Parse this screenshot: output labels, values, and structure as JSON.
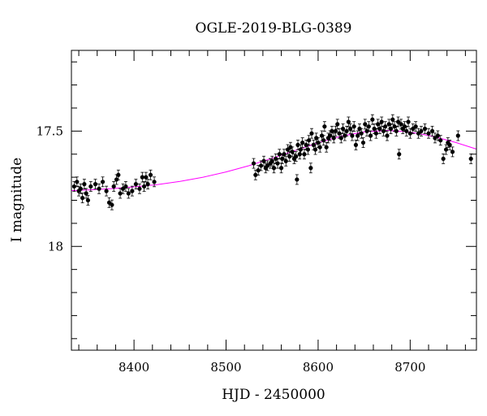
{
  "chart_data": {
    "type": "scatter",
    "title": "OGLE-2019-BLG-0389",
    "xlabel": "HJD - 2450000",
    "ylabel": "I magnitude",
    "xlim": [
      8332,
      8772
    ],
    "ylim": [
      18.45,
      17.15
    ],
    "y_inverted": true,
    "x_ticks": [
      8400,
      8500,
      8600,
      8700
    ],
    "y_ticks": [
      17.5,
      18
    ],
    "x_tick_labels": [
      "8400",
      "8500",
      "8600",
      "8700"
    ],
    "y_tick_labels": [
      "17.5",
      "18"
    ],
    "grid": false,
    "colors": {
      "points": "#000000",
      "model": "#ff00ff"
    },
    "series": [
      {
        "name": "",
        "role": "observations",
        "points": [
          [
            8335,
            17.74
          ],
          [
            8338,
            17.72
          ],
          [
            8340,
            17.76
          ],
          [
            8342,
            17.75
          ],
          [
            8344,
            17.79
          ],
          [
            8346,
            17.73
          ],
          [
            8348,
            17.77
          ],
          [
            8350,
            17.8
          ],
          [
            8353,
            17.74
          ],
          [
            8358,
            17.73
          ],
          [
            8362,
            17.75
          ],
          [
            8366,
            17.72
          ],
          [
            8370,
            17.76
          ],
          [
            8373,
            17.81
          ],
          [
            8376,
            17.82
          ],
          [
            8378,
            17.74
          ],
          [
            8381,
            17.71
          ],
          [
            8383,
            17.69
          ],
          [
            8385,
            17.77
          ],
          [
            8388,
            17.75
          ],
          [
            8391,
            17.74
          ],
          [
            8394,
            17.77
          ],
          [
            8398,
            17.76
          ],
          [
            8402,
            17.73
          ],
          [
            8406,
            17.75
          ],
          [
            8409,
            17.7
          ],
          [
            8411,
            17.74
          ],
          [
            8413,
            17.7
          ],
          [
            8415,
            17.73
          ],
          [
            8418,
            17.69
          ],
          [
            8422,
            17.72
          ],
          [
            8530,
            17.64
          ],
          [
            8532,
            17.69
          ],
          [
            8535,
            17.67
          ],
          [
            8538,
            17.65
          ],
          [
            8541,
            17.63
          ],
          [
            8543,
            17.66
          ],
          [
            8545,
            17.65
          ],
          [
            8548,
            17.64
          ],
          [
            8550,
            17.63
          ],
          [
            8552,
            17.66
          ],
          [
            8554,
            17.62
          ],
          [
            8556,
            17.64
          ],
          [
            8558,
            17.6
          ],
          [
            8560,
            17.66
          ],
          [
            8561,
            17.62
          ],
          [
            8563,
            17.6
          ],
          [
            8565,
            17.63
          ],
          [
            8567,
            17.58
          ],
          [
            8569,
            17.61
          ],
          [
            8570,
            17.57
          ],
          [
            8572,
            17.59
          ],
          [
            8574,
            17.62
          ],
          [
            8576,
            17.61
          ],
          [
            8577,
            17.71
          ],
          [
            8578,
            17.56
          ],
          [
            8580,
            17.6
          ],
          [
            8581,
            17.58
          ],
          [
            8583,
            17.55
          ],
          [
            8585,
            17.6
          ],
          [
            8587,
            17.56
          ],
          [
            8589,
            17.58
          ],
          [
            8590,
            17.54
          ],
          [
            8592,
            17.66
          ],
          [
            8593,
            17.51
          ],
          [
            8595,
            17.56
          ],
          [
            8597,
            17.58
          ],
          [
            8598,
            17.53
          ],
          [
            8600,
            17.55
          ],
          [
            8602,
            17.57
          ],
          [
            8604,
            17.52
          ],
          [
            8606,
            17.54
          ],
          [
            8607,
            17.48
          ],
          [
            8609,
            17.57
          ],
          [
            8611,
            17.53
          ],
          [
            8613,
            17.52
          ],
          [
            8615,
            17.5
          ],
          [
            8617,
            17.53
          ],
          [
            8619,
            17.5
          ],
          [
            8621,
            17.47
          ],
          [
            8623,
            17.51
          ],
          [
            8625,
            17.53
          ],
          [
            8627,
            17.49
          ],
          [
            8629,
            17.52
          ],
          [
            8631,
            17.5
          ],
          [
            8633,
            17.46
          ],
          [
            8635,
            17.49
          ],
          [
            8637,
            17.52
          ],
          [
            8639,
            17.48
          ],
          [
            8641,
            17.56
          ],
          [
            8643,
            17.52
          ],
          [
            8645,
            17.49
          ],
          [
            8647,
            17.51
          ],
          [
            8649,
            17.55
          ],
          [
            8651,
            17.47
          ],
          [
            8653,
            17.5
          ],
          [
            8655,
            17.48
          ],
          [
            8657,
            17.52
          ],
          [
            8659,
            17.45
          ],
          [
            8661,
            17.49
          ],
          [
            8663,
            17.51
          ],
          [
            8665,
            17.47
          ],
          [
            8667,
            17.49
          ],
          [
            8669,
            17.46
          ],
          [
            8671,
            17.5
          ],
          [
            8673,
            17.48
          ],
          [
            8675,
            17.52
          ],
          [
            8677,
            17.47
          ],
          [
            8679,
            17.49
          ],
          [
            8681,
            17.45
          ],
          [
            8683,
            17.48
          ],
          [
            8685,
            17.5
          ],
          [
            8687,
            17.46
          ],
          [
            8688,
            17.6
          ],
          [
            8690,
            17.47
          ],
          [
            8692,
            17.49
          ],
          [
            8694,
            17.48
          ],
          [
            8696,
            17.5
          ],
          [
            8698,
            17.46
          ],
          [
            8700,
            17.51
          ],
          [
            8703,
            17.49
          ],
          [
            8706,
            17.48
          ],
          [
            8709,
            17.51
          ],
          [
            8712,
            17.5
          ],
          [
            8716,
            17.49
          ],
          [
            8720,
            17.51
          ],
          [
            8724,
            17.5
          ],
          [
            8727,
            17.53
          ],
          [
            8730,
            17.52
          ],
          [
            8733,
            17.54
          ],
          [
            8736,
            17.62
          ],
          [
            8739,
            17.58
          ],
          [
            8741,
            17.55
          ],
          [
            8743,
            17.56
          ],
          [
            8746,
            17.59
          ],
          [
            8752,
            17.52
          ],
          [
            8766,
            17.62
          ]
        ]
      },
      {
        "name": "",
        "role": "model",
        "points": [
          [
            8332,
            17.758
          ],
          [
            8350,
            17.755
          ],
          [
            8375,
            17.75
          ],
          [
            8400,
            17.742
          ],
          [
            8425,
            17.732
          ],
          [
            8450,
            17.718
          ],
          [
            8475,
            17.7
          ],
          [
            8500,
            17.677
          ],
          [
            8525,
            17.65
          ],
          [
            8550,
            17.618
          ],
          [
            8575,
            17.584
          ],
          [
            8600,
            17.551
          ],
          [
            8625,
            17.522
          ],
          [
            8650,
            17.503
          ],
          [
            8675,
            17.497
          ],
          [
            8700,
            17.504
          ],
          [
            8725,
            17.523
          ],
          [
            8750,
            17.55
          ],
          [
            8772,
            17.578
          ]
        ]
      }
    ]
  }
}
